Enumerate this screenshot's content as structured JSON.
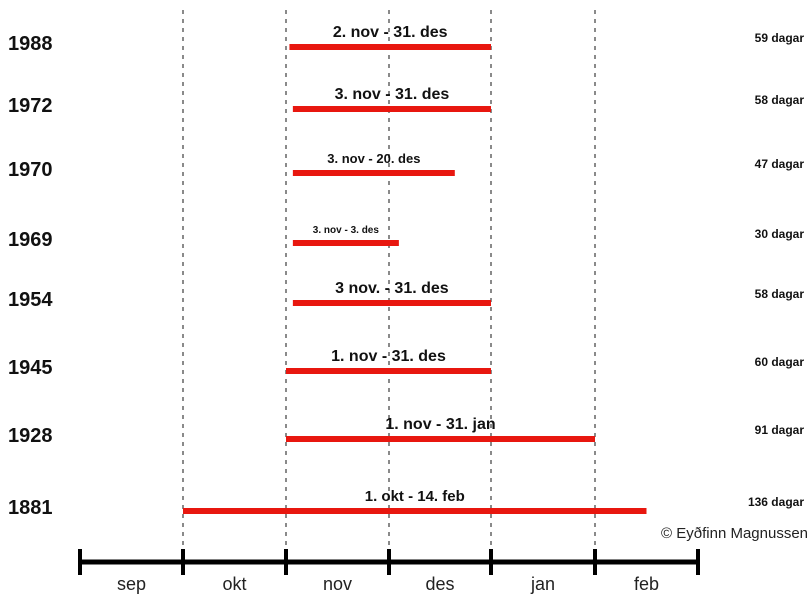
{
  "chart_data": {
    "type": "bar",
    "orientation": "horizontal-range",
    "months": [
      "sep",
      "okt",
      "nov",
      "des",
      "jan",
      "feb"
    ],
    "grid": "dashed vertical lines at month boundaries",
    "rows": [
      {
        "year": "1988",
        "label": "2. nov - 31. des",
        "days_label": "59 dagar",
        "start_day": 62,
        "end_day": 122
      },
      {
        "year": "1972",
        "label": "3. nov - 31. des",
        "days_label": "58 dagar",
        "start_day": 63,
        "end_day": 122
      },
      {
        "year": "1970",
        "label": "3. nov - 20. des",
        "days_label": "47 dagar",
        "start_day": 63,
        "end_day": 111
      },
      {
        "year": "1969",
        "label": "3. nov - 3. des",
        "days_label": "30 dagar",
        "start_day": 63,
        "end_day": 94
      },
      {
        "year": "1954",
        "label": "3 nov. - 31. des",
        "days_label": "58 dagar",
        "start_day": 63,
        "end_day": 122
      },
      {
        "year": "1945",
        "label": "1. nov - 31. des",
        "days_label": "60 dagar",
        "start_day": 61,
        "end_day": 122
      },
      {
        "year": "1928",
        "label": "1. nov - 31. jan",
        "days_label": "91 dagar",
        "start_day": 61,
        "end_day": 153
      },
      {
        "year": "1881",
        "label": "1. okt - 14. feb",
        "days_label": "136 dagar",
        "start_day": 30,
        "end_day": 167
      }
    ],
    "credit": "© Eyðfinn Magnussen",
    "colors": {
      "bar": "#e8170f",
      "grid": "#8a8a8a",
      "axis": "#000000"
    }
  }
}
